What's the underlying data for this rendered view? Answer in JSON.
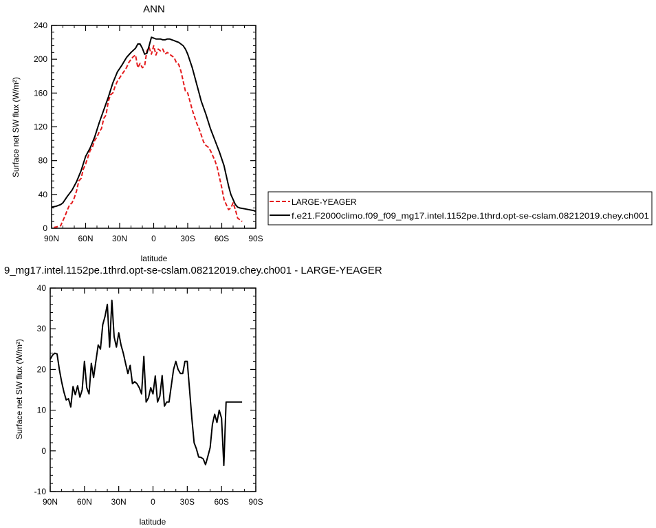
{
  "chart_data": [
    {
      "type": "line",
      "title": "ANN",
      "xlabel": "latitude",
      "ylabel": "Surface net SW flux (W/m²)",
      "x_ticks": [
        -90,
        -60,
        -30,
        0,
        30,
        60,
        90
      ],
      "x_tick_labels": [
        "90N",
        "60N",
        "30N",
        "0",
        "30S",
        "60S",
        "90S"
      ],
      "xlim": [
        -90,
        90
      ],
      "ylim": [
        0,
        240
      ],
      "y_ticks": [
        0,
        40,
        80,
        120,
        160,
        200,
        240
      ],
      "y_tick_labels": [
        "0",
        "40",
        "80",
        "120",
        "160",
        "200",
        "240"
      ],
      "grid": false,
      "legend_position": "right",
      "series": [
        {
          "name": "LARGE-YEAGER",
          "color": "#e41a1c",
          "dash": "dashed",
          "x": [
            -88,
            -84,
            -82,
            -80,
            -78,
            -76,
            -74,
            -72,
            -70,
            -68,
            -66,
            -64,
            -62,
            -60,
            -58,
            -56,
            -54,
            -52,
            -50,
            -48,
            -46,
            -44,
            -42,
            -40,
            -38,
            -36,
            -34,
            -32,
            -30,
            -28,
            -26,
            -24,
            -22,
            -20,
            -18,
            -16,
            -14,
            -12,
            -10,
            -8,
            -6,
            -4,
            -2,
            0,
            2,
            4,
            6,
            8,
            10,
            12,
            14,
            16,
            18,
            20,
            22,
            24,
            26,
            28,
            30,
            32,
            34,
            36,
            38,
            40,
            42,
            44,
            46,
            48,
            50,
            52,
            54,
            56,
            58,
            60,
            62,
            64,
            66,
            68,
            70,
            72,
            74,
            76,
            78
          ],
          "y": [
            1,
            2,
            3,
            9,
            15,
            22,
            28,
            30,
            36,
            44,
            56,
            59,
            70,
            76,
            84,
            92,
            96,
            104,
            108,
            114,
            118,
            130,
            134,
            150,
            158,
            160,
            168,
            174,
            178,
            182,
            186,
            190,
            196,
            200,
            203,
            205,
            190,
            195,
            190,
            192,
            210,
            214,
            206,
            216,
            205,
            212,
            210,
            212,
            206,
            208,
            206,
            204,
            202,
            196,
            194,
            186,
            174,
            162,
            160,
            150,
            140,
            132,
            124,
            118,
            110,
            102,
            98,
            96,
            92,
            86,
            80,
            72,
            60,
            48,
            34,
            28,
            22,
            24,
            30,
            22,
            12,
            10,
            8
          ]
        },
        {
          "name": "f.e21.F2000climo.f09_f09_mg17.intel.1152pe.1thrd.opt-se-cslam.08212019.chey.ch001",
          "color": "#000000",
          "dash": "solid",
          "x": [
            -90,
            -86,
            -84,
            -82,
            -80,
            -78,
            -76,
            -72,
            -68,
            -64,
            -60,
            -56,
            -52,
            -48,
            -44,
            -40,
            -36,
            -32,
            -28,
            -24,
            -20,
            -16,
            -14,
            -12,
            -10,
            -8,
            -6,
            -4,
            -2,
            0,
            2,
            4,
            6,
            8,
            10,
            12,
            14,
            16,
            18,
            20,
            22,
            24,
            26,
            28,
            30,
            34,
            38,
            42,
            46,
            50,
            54,
            58,
            62,
            64,
            66,
            68,
            70,
            72,
            74,
            76,
            80,
            84,
            88,
            90
          ],
          "y": [
            25,
            26,
            27,
            28,
            30,
            34,
            38,
            45,
            55,
            68,
            85,
            95,
            108,
            125,
            140,
            155,
            172,
            185,
            193,
            202,
            208,
            213,
            218,
            218,
            213,
            206,
            207,
            216,
            226,
            225,
            224,
            224,
            224,
            223,
            223,
            224,
            224,
            223,
            222,
            221,
            220,
            218,
            216,
            212,
            206,
            190,
            170,
            150,
            135,
            118,
            104,
            90,
            74,
            62,
            50,
            40,
            34,
            28,
            25,
            24,
            23,
            22,
            21,
            20
          ]
        }
      ]
    },
    {
      "type": "line",
      "title": "9_mg17.intel.1152pe.1thrd.opt-se-cslam.08212019.chey.ch001 - LARGE-YEAGER",
      "xlabel": "latitude",
      "ylabel": "Surface net SW flux (W/m²)",
      "x_ticks": [
        -90,
        -60,
        -30,
        0,
        30,
        60,
        90
      ],
      "x_tick_labels": [
        "90N",
        "60N",
        "30N",
        "0",
        "30S",
        "60S",
        "90S"
      ],
      "xlim": [
        -90,
        90
      ],
      "ylim": [
        -10,
        40
      ],
      "y_ticks": [
        -10,
        0,
        10,
        20,
        30,
        40
      ],
      "y_tick_labels": [
        "-10",
        "0",
        "10",
        "20",
        "30",
        "40"
      ],
      "grid": false,
      "series": [
        {
          "color": "#000000",
          "dash": "solid",
          "x": [
            -90,
            -88,
            -86,
            -84,
            -82,
            -80,
            -78,
            -76,
            -74,
            -72,
            -70,
            -68,
            -66,
            -64,
            -62,
            -60,
            -58,
            -56,
            -54,
            -52,
            -50,
            -48,
            -46,
            -44,
            -42,
            -40,
            -38,
            -36,
            -34,
            -32,
            -30,
            -28,
            -26,
            -24,
            -22,
            -20,
            -18,
            -16,
            -14,
            -12,
            -10,
            -8,
            -6,
            -4,
            -2,
            0,
            2,
            4,
            6,
            8,
            10,
            12,
            14,
            16,
            18,
            20,
            22,
            24,
            26,
            28,
            30,
            32,
            34,
            36,
            38,
            40,
            42,
            44,
            46,
            48,
            50,
            52,
            54,
            56,
            58,
            60,
            62,
            64,
            66,
            68,
            70,
            72,
            74,
            76,
            78
          ],
          "y": [
            22.5,
            23.5,
            24,
            23.8,
            20,
            17,
            14.5,
            12.5,
            12.8,
            10.8,
            15.8,
            13.8,
            16,
            13.2,
            15,
            22,
            15.5,
            14,
            21.5,
            18,
            22,
            26,
            25,
            31,
            33,
            36,
            25.5,
            37,
            28,
            25.5,
            29,
            26,
            24,
            21.5,
            19,
            21,
            16.5,
            17,
            16.5,
            15.5,
            14,
            23.2,
            12,
            13,
            15.5,
            14,
            18.4,
            12,
            13.5,
            18.5,
            11,
            12,
            12,
            16,
            20,
            22,
            20,
            19,
            19,
            22,
            22,
            15,
            8,
            2,
            0.5,
            -1.5,
            -1.6,
            -2,
            -3.4,
            -1.4,
            0.8,
            6.5,
            9,
            7,
            10,
            8,
            -3.6,
            12,
            12,
            12,
            12,
            12,
            12,
            12,
            12
          ]
        }
      ]
    }
  ]
}
